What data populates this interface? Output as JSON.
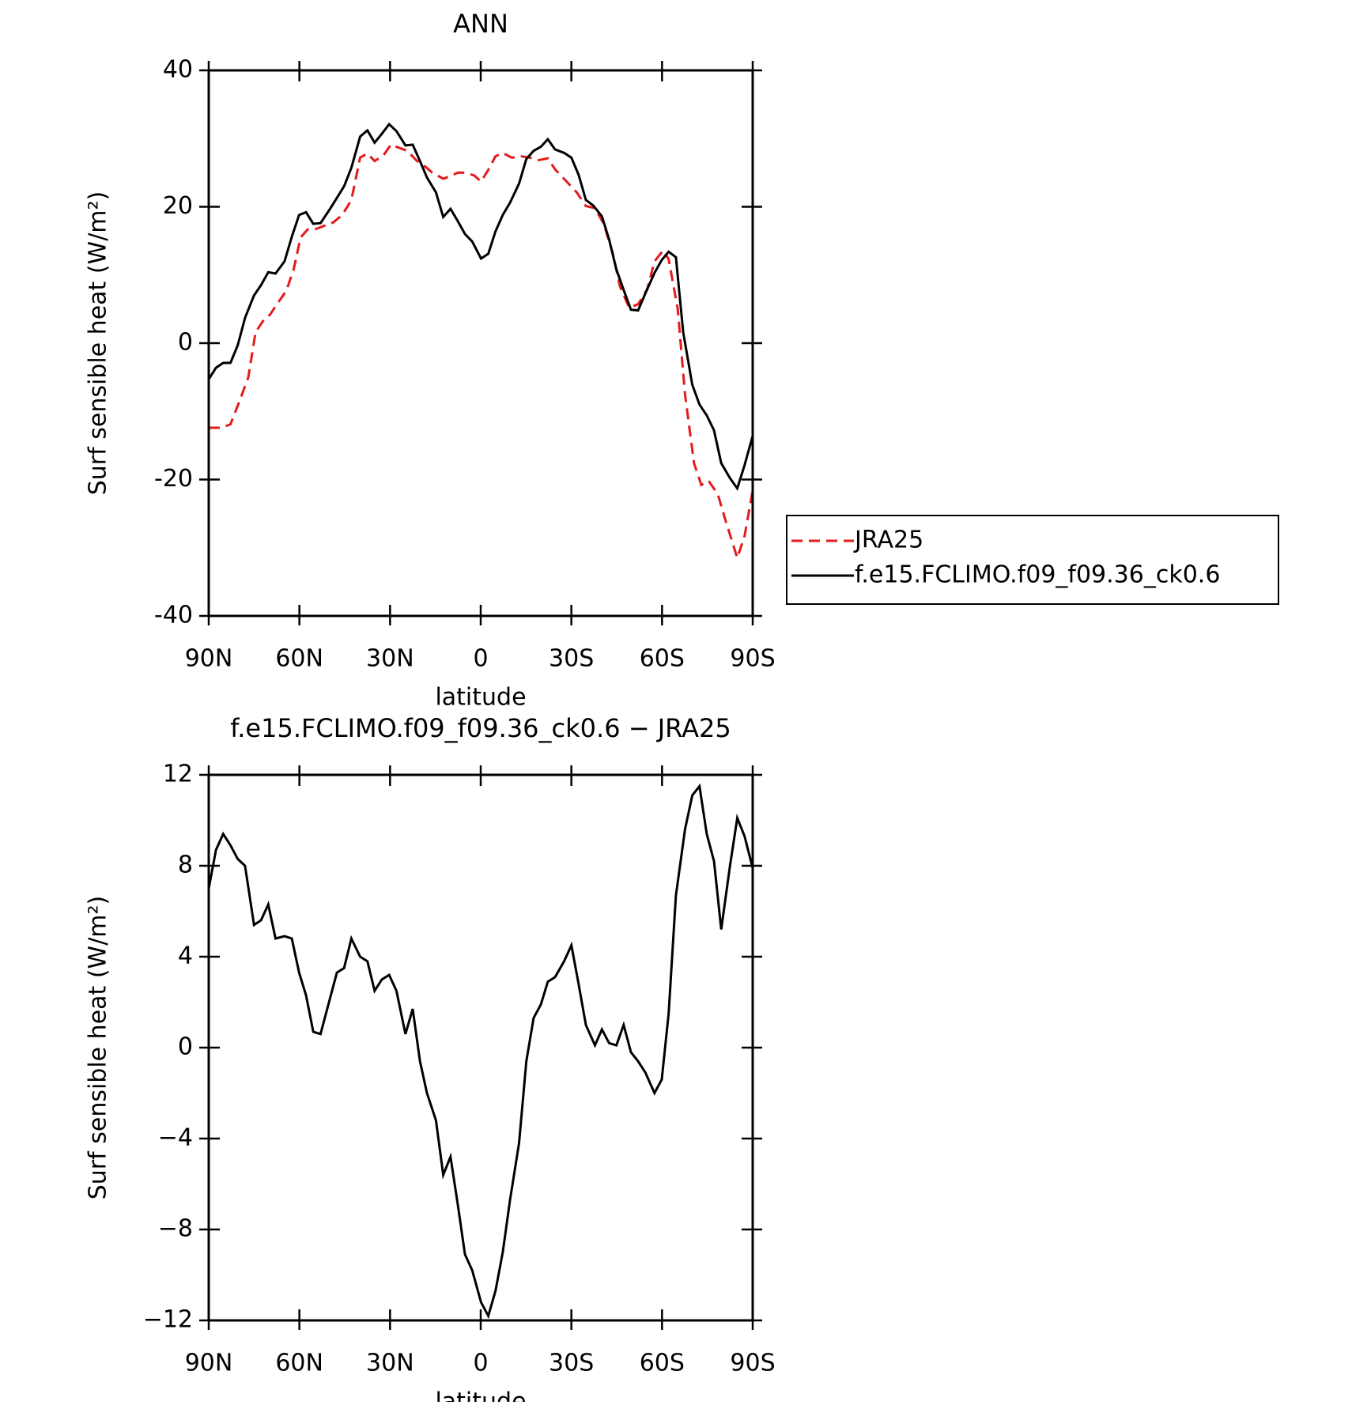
{
  "chart_data": [
    {
      "type": "line",
      "title": "ANN",
      "xlabel": "latitude",
      "ylabel": "Surf sensible heat (W/m²)",
      "xlim": [
        90,
        -90
      ],
      "xticks": [
        {
          "value": 90,
          "label": "90N"
        },
        {
          "value": 60,
          "label": "60N"
        },
        {
          "value": 30,
          "label": "30N"
        },
        0,
        {
          "value": -30,
          "label": "30S"
        },
        {
          "value": -60,
          "label": "60S"
        },
        {
          "value": -90,
          "label": "90S"
        }
      ],
      "ylim": [
        -40,
        40
      ],
      "yticks": [
        -40,
        -20,
        0,
        20,
        40
      ],
      "legend": "right",
      "series": [
        {
          "name": "JRA25",
          "color": "#e41a1c",
          "style": "dashed",
          "x": [
            90,
            85.8,
            82.8,
            79.9,
            76.9,
            74.5,
            72.1,
            69.7,
            67.3,
            64.3,
            61.9,
            59.6,
            57.2,
            54.8,
            51.8,
            48.8,
            45.8,
            42.8,
            39.9,
            37.5,
            35.1,
            32.1,
            29.7,
            27.3,
            24.3,
            21.3,
            18.4,
            16,
            12.4,
            10,
            7.6,
            5.2,
            2.2,
            -0.1,
            -2.5,
            -4.9,
            -7.3,
            -10.3,
            -13.3,
            -16.3,
            -18.7,
            -22.2,
            -24.6,
            -28.2,
            -31.8,
            -34.8,
            -37.8,
            -40.7,
            -43.7,
            -46.1,
            -49.1,
            -52.1,
            -55.1,
            -57.5,
            -60.4,
            -62.2,
            -65.2,
            -67.6,
            -70.6,
            -73,
            -75.4,
            -78.4,
            -81.3,
            -84.9,
            -87.3,
            -90
          ],
          "values": [
            -12.4,
            -12.4,
            -11.9,
            -8.6,
            -5,
            1.6,
            3.2,
            4.2,
            5.8,
            7.7,
            10.8,
            15.5,
            16.7,
            16.7,
            17.2,
            17.7,
            18.8,
            21,
            27.2,
            27.8,
            26.7,
            27.6,
            29.1,
            28.7,
            28.2,
            26.8,
            25.9,
            25,
            24.1,
            24.5,
            25,
            25,
            24.6,
            23.7,
            25.4,
            27.4,
            27.9,
            27.2,
            27.4,
            27.2,
            26.8,
            27.1,
            25.5,
            23.8,
            22.1,
            20.1,
            19.8,
            17.5,
            13.2,
            8.3,
            5.2,
            5.7,
            7.9,
            12,
            13.6,
            12.3,
            5,
            -7.5,
            -17.6,
            -20.8,
            -20.2,
            -22.1,
            -26.4,
            -31.5,
            -28.3,
            -21.6
          ]
        },
        {
          "name": "f.e15.FCLIMO.f09_f09.36_ck0.6",
          "color": "#000000",
          "style": "solid",
          "x": [
            90,
            87.6,
            85.2,
            82.8,
            80.4,
            78,
            75,
            72.7,
            70.3,
            67.9,
            64.9,
            62.5,
            60.1,
            57.8,
            55.4,
            53,
            50,
            47.6,
            45.2,
            42.8,
            39.9,
            37.5,
            35.1,
            32.7,
            30.3,
            27.9,
            24.9,
            22.5,
            20.1,
            17.8,
            14.8,
            12.4,
            10,
            7.6,
            5.2,
            2.8,
            -0.1,
            -2.5,
            -4.9,
            -7.3,
            -9.7,
            -12.7,
            -15.1,
            -17.5,
            -19.9,
            -22.2,
            -24.6,
            -27.6,
            -30,
            -32.4,
            -34.8,
            -37.2,
            -40.1,
            -42.5,
            -44.9,
            -47.3,
            -49.7,
            -52.1,
            -54.5,
            -57.5,
            -59.9,
            -62.2,
            -64.6,
            -67,
            -70,
            -72.4,
            -74.8,
            -77.2,
            -79.6,
            -82.5,
            -84.9,
            -87.3,
            -90
          ],
          "values": [
            -5.3,
            -3.6,
            -2.9,
            -2.9,
            -0.3,
            3.7,
            7,
            8.5,
            10.4,
            10.2,
            12,
            15.6,
            18.8,
            19.2,
            17.5,
            17.6,
            19.6,
            21.3,
            23,
            25.7,
            30.3,
            31.2,
            29.4,
            30.7,
            32.1,
            31.1,
            29,
            29.1,
            26.7,
            24.3,
            22.1,
            18.5,
            19.7,
            17.9,
            16,
            14.9,
            12.4,
            13.1,
            16.4,
            18.8,
            20.6,
            23.4,
            27,
            28.2,
            28.8,
            29.9,
            28.4,
            27.9,
            27.2,
            24.7,
            21,
            20.2,
            18.6,
            15.2,
            10.8,
            7.8,
            4.9,
            4.8,
            7.3,
            10.3,
            12.2,
            13.4,
            12.6,
            1.6,
            -6.1,
            -9,
            -10.6,
            -12.8,
            -17.6,
            -19.8,
            -21.3,
            -17.9,
            -13.6
          ]
        }
      ]
    },
    {
      "type": "line",
      "title": "f.e15.FCLIMO.f09_f09.36_ck0.6 − JRA25",
      "xlabel": "latitude",
      "ylabel": "Surf sensible heat (W/m²)",
      "xlim": [
        90,
        -90
      ],
      "xticks": [
        {
          "value": 90,
          "label": "90N"
        },
        {
          "value": 60,
          "label": "60N"
        },
        {
          "value": 30,
          "label": "30N"
        },
        0,
        {
          "value": -30,
          "label": "30S"
        },
        {
          "value": -60,
          "label": "60S"
        },
        {
          "value": -90,
          "label": "90S"
        }
      ],
      "ylim": [
        -12,
        12
      ],
      "yticks": [
        {
          "value": -12,
          "label": "−12"
        },
        {
          "value": -8,
          "label": "−8"
        },
        {
          "value": -4,
          "label": "−4"
        },
        0,
        4,
        8,
        12
      ],
      "series": [
        {
          "color": "#000000",
          "style": "solid",
          "x": [
            90,
            87.6,
            85.2,
            82.8,
            80.4,
            78,
            75,
            72.7,
            70.3,
            67.9,
            64.9,
            62.5,
            60.1,
            57.8,
            55.4,
            53,
            50,
            47.6,
            45.2,
            42.8,
            39.9,
            37.5,
            35.1,
            32.7,
            30.3,
            27.9,
            24.9,
            22.5,
            20.1,
            17.8,
            14.8,
            12.4,
            10,
            7.6,
            5.2,
            2.8,
            -0.1,
            -2.5,
            -4.9,
            -7.3,
            -9.7,
            -12.7,
            -15.1,
            -17.5,
            -19.9,
            -22.2,
            -24.6,
            -27.6,
            -30,
            -32.4,
            -34.8,
            -37.8,
            -40.1,
            -42.5,
            -44.9,
            -47.3,
            -49.7,
            -52.1,
            -54.5,
            -57.5,
            -59.9,
            -62.2,
            -64.6,
            -67.6,
            -70,
            -72.4,
            -74.8,
            -77.2,
            -79.6,
            -82.5,
            -84.9,
            -87.3,
            -90
          ],
          "values": [
            7,
            8.7,
            9.4,
            8.9,
            8.3,
            8,
            5.4,
            5.6,
            6.3,
            4.8,
            4.9,
            4.8,
            3.3,
            2.3,
            0.7,
            0.6,
            2.1,
            3.3,
            3.5,
            4.8,
            4,
            3.8,
            2.5,
            3,
            3.2,
            2.5,
            0.6,
            1.7,
            -0.6,
            -2,
            -3.2,
            -5.6,
            -4.8,
            -6.9,
            -9.1,
            -9.8,
            -11.2,
            -11.8,
            -10.7,
            -9,
            -6.7,
            -4.2,
            -0.6,
            1.3,
            1.9,
            2.9,
            3.1,
            3.8,
            4.5,
            2.8,
            1,
            0.1,
            0.8,
            0.2,
            0.1,
            1,
            -0.2,
            -0.6,
            -1.1,
            -2,
            -1.4,
            1.5,
            6.7,
            9.6,
            11.1,
            11.5,
            9.4,
            8.2,
            5.2,
            8,
            10.1,
            9.3,
            7.9
          ]
        }
      ]
    }
  ]
}
